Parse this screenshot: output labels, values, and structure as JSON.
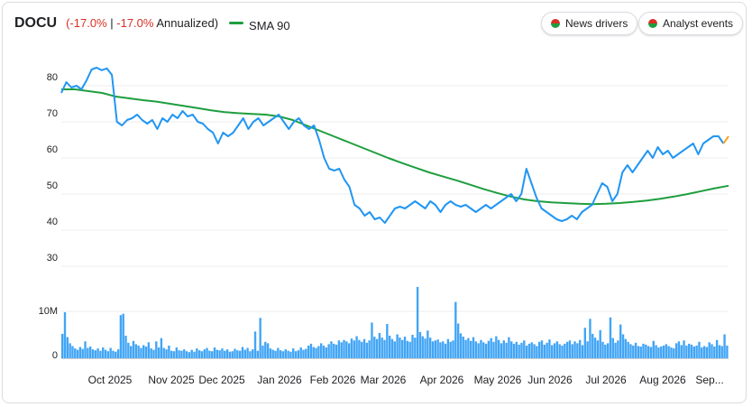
{
  "header": {
    "ticker": "DOCU",
    "change_open": "(",
    "change_pct": "-17.0%",
    "separator": " | ",
    "annualized_pct": "-17.0%",
    "annualized_label": "Annualized)",
    "sma_label": "SMA 90"
  },
  "buttons": {
    "news_drivers": "News drivers",
    "analyst_events": "Analyst events"
  },
  "colors": {
    "price_line": "#2196f3",
    "sma_line": "#1e9e3e",
    "volume_bar": "#42a5f5",
    "down_text": "#d93025",
    "last_segment": "#f5a623"
  },
  "chart_data": [
    {
      "type": "line",
      "title": "",
      "y_ticks": [
        "30",
        "40",
        "50",
        "60",
        "70",
        "80"
      ],
      "ylim": [
        30,
        85
      ],
      "x_labels": [
        "Oct 2025",
        "Nov 2025",
        "Dec 2025",
        "Jan 2026",
        "Feb 2026",
        "Mar 2026",
        "Apr 2026",
        "May 2026",
        "Jun 2026",
        "Jul 2026",
        "Aug 2026",
        "Sep..."
      ],
      "grid": true,
      "series": [
        {
          "name": "DOCU",
          "values": [
            78,
            81,
            79.5,
            80,
            79,
            81.5,
            84.5,
            85,
            84.3,
            84.8,
            83,
            70,
            69,
            70.5,
            71,
            72,
            70.5,
            69.5,
            70.5,
            68,
            71,
            70,
            72,
            71,
            73,
            71.5,
            72,
            70,
            69.5,
            68,
            67,
            64,
            67,
            66,
            67,
            69,
            71,
            68,
            70,
            71,
            69,
            70,
            71,
            72,
            70,
            68,
            70,
            71,
            69,
            68,
            69,
            65,
            60,
            57,
            56.5,
            57,
            54,
            52,
            47,
            46,
            44,
            45,
            43,
            43.5,
            42,
            44,
            46,
            46.5,
            46,
            47,
            48,
            47,
            46,
            48,
            47,
            45,
            47,
            48,
            47,
            46.5,
            47,
            46,
            45,
            46,
            47,
            46,
            47,
            48,
            49,
            50,
            48,
            50,
            57,
            53,
            49,
            46,
            45,
            44,
            43,
            42.5,
            43,
            44,
            43,
            45,
            46,
            47,
            50,
            53,
            52,
            48,
            50,
            56,
            58,
            56,
            58,
            60,
            62,
            60,
            63,
            61,
            62,
            60,
            61,
            62,
            63,
            64,
            61,
            64,
            65,
            66,
            66,
            64,
            66
          ]
        },
        {
          "name": "SMA 90",
          "values": [
            79,
            79,
            78.5,
            78,
            77,
            76.5,
            76,
            75.6,
            75,
            74.4,
            73.8,
            73.2,
            72.7,
            72.4,
            72.2,
            72,
            71.5,
            70.5,
            69,
            67.5,
            66,
            64.5,
            63,
            61.5,
            60,
            58.6,
            57.3,
            56,
            54.9,
            53.8,
            52.6,
            51.4,
            50.3,
            49.3,
            48.5,
            48,
            47.7,
            47.5,
            47.3,
            47.2,
            47.3,
            47.5,
            47.8,
            48.2,
            48.7,
            49.3,
            50,
            50.8,
            51.6,
            52.3
          ]
        }
      ]
    },
    {
      "type": "bar",
      "title": "",
      "y_ticks": [
        "0",
        "10M"
      ],
      "ylim": [
        0,
        16000000
      ],
      "series": [
        {
          "name": "Volume",
          "values": [
            5200000,
            9800000,
            4500000,
            3200000,
            2600000,
            2100000,
            1800000,
            2400000,
            2000000,
            3600000,
            2200000,
            2500000,
            1900000,
            1700000,
            2100000,
            1600000,
            2300000,
            1800000,
            1500000,
            2200000,
            1600000,
            1400000,
            1900000,
            9200000,
            9500000,
            4800000,
            3300000,
            2600000,
            3700000,
            3000000,
            2700000,
            2200000,
            2800000,
            2500000,
            3400000,
            2100000,
            1800000,
            3600000,
            2300000,
            4300000,
            2200000,
            1900000,
            2700000,
            1600000,
            1500000,
            2300000,
            1700000,
            1600000,
            1900000,
            1500000,
            1300000,
            1800000,
            1400000,
            2100000,
            1700000,
            1500000,
            1900000,
            2200000,
            1600000,
            1500000,
            2300000,
            1800000,
            1700000,
            2100000,
            1600000,
            1900000,
            1400000,
            1500000,
            2000000,
            1700000,
            1600000,
            2400000,
            1800000,
            2200000,
            1500000,
            1900000,
            5700000,
            1600000,
            8600000,
            2700000,
            3500000,
            3200000,
            2100000,
            1800000,
            1600000,
            2200000,
            1700000,
            1500000,
            1900000,
            1600000,
            1400000,
            2100000,
            1500000,
            1700000,
            2300000,
            1800000,
            2000000,
            2700000,
            3100000,
            2400000,
            2200000,
            2600000,
            3200000,
            2700000,
            2300000,
            3000000,
            3600000,
            3100000,
            2900000,
            3800000,
            3400000,
            3900000,
            3600000,
            3200000,
            4200000,
            3800000,
            4700000,
            3900000,
            3500000,
            4100000,
            3300000,
            3800000,
            7600000,
            4600000,
            4100000,
            5400000,
            4400000,
            3900000,
            7300000,
            4800000,
            4100000,
            3600000,
            5100000,
            4400000,
            3900000,
            4600000,
            3700000,
            3500000,
            5000000,
            4400000,
            15200000,
            5600000,
            4700000,
            4200000,
            5900000,
            4400000,
            3600000,
            3800000,
            4000000,
            3400000,
            3600000,
            3100000,
            4100000,
            3500000,
            3800000,
            12000000,
            7400000,
            5300000,
            4600000,
            3900000,
            4300000,
            3700000,
            4500000,
            3600000,
            3200000,
            3900000,
            3400000,
            3100000,
            3700000,
            4300000,
            3500000,
            4700000,
            3900000,
            3200000,
            3800000,
            3300000,
            4500000,
            3600000,
            3100000,
            3500000,
            2900000,
            3300000,
            3800000,
            2700000,
            3100000,
            3400000,
            3000000,
            2600000,
            3500000,
            3800000,
            2900000,
            3300000,
            4000000,
            2800000,
            3200000,
            3600000,
            3000000,
            2700000,
            3100000,
            3500000,
            3800000,
            3000000,
            3600000,
            3200000,
            3900000,
            2800000,
            6500000,
            3600000,
            8400000,
            5200000,
            4400000,
            3800000,
            6000000,
            3500000,
            2900000,
            3200000,
            8700000,
            4300000,
            3300000,
            3800000,
            7200000,
            5100000,
            4100000,
            3500000,
            3000000,
            2700000,
            3300000,
            2600000,
            2500000,
            3100000,
            2900000,
            2600000,
            2400000,
            3700000,
            2800000,
            2300000,
            2500000,
            2700000,
            3000000,
            2600000,
            2300000,
            2100000,
            3200000,
            3600000,
            2800000,
            3800000,
            2700000,
            3100000,
            2900000,
            2500000,
            2700000,
            3500000,
            2300000,
            2600000,
            2400000,
            3400000,
            3000000,
            2500000,
            3900000,
            2800000,
            2600000,
            5100000,
            2700000
          ]
        }
      ]
    }
  ]
}
